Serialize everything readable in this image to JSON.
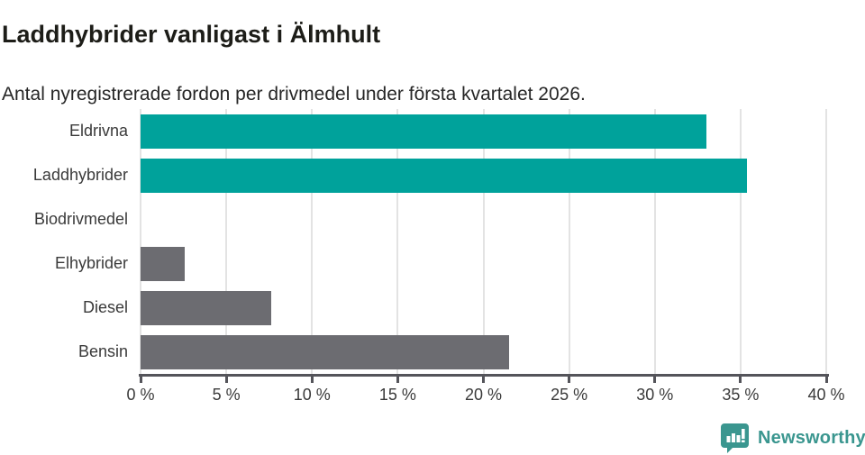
{
  "header": {
    "title": "Laddhybrider vanligast i Älmhult",
    "subtitle": "Antal nyregistrerade fordon per drivmedel under första kvartalet 2026."
  },
  "chart_data": {
    "type": "bar",
    "orientation": "horizontal",
    "title": "Laddhybrider vanligast i Älmhult",
    "subtitle": "Antal nyregistrerade fordon per drivmedel under första kvartalet 2026.",
    "categories": [
      "Eldrivna",
      "Laddhybrider",
      "Biodrivmedel",
      "Elhybrider",
      "Diesel",
      "Bensin"
    ],
    "values": [
      33.0,
      35.4,
      0,
      2.6,
      7.6,
      21.5
    ],
    "unit": "%",
    "bar_colors": [
      "#00a29b",
      "#00a29b",
      "#6c6c71",
      "#6c6c71",
      "#6c6c71",
      "#6c6c71"
    ],
    "xlim": [
      0,
      40
    ],
    "xticks": [
      0,
      5,
      10,
      15,
      20,
      25,
      30,
      35,
      40
    ],
    "xtick_labels": [
      "0 %",
      "5 %",
      "10 %",
      "15 %",
      "20 %",
      "25 %",
      "30 %",
      "35 %",
      "40 %"
    ],
    "grid": "vertical gridlines on, light gray",
    "legend": "none",
    "highlight_color": "#00a29b",
    "default_color": "#6c6c71"
  },
  "colors": {
    "teal_bar": "#00a29b",
    "gray_bar": "#6c6c71",
    "gridline": "#e3e3e3",
    "axis": "#54545a",
    "tick_text": "#3a3a3a",
    "title_text": "#1d1d18",
    "brand_teal": "#3a968f"
  },
  "footer": {
    "brand_name": "Newsworthy",
    "brand_icon": "speech-bubble-with-bar-chart-and-exclamation"
  }
}
